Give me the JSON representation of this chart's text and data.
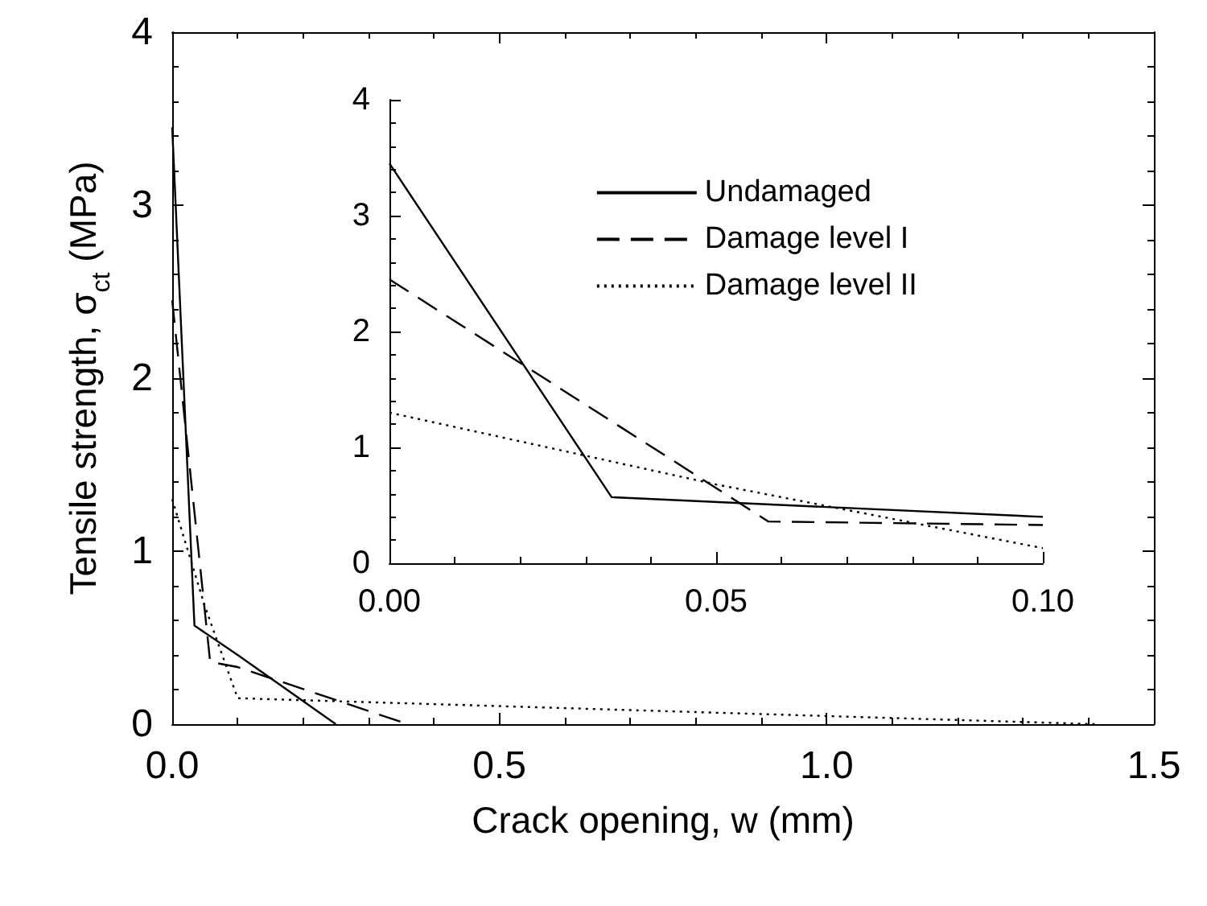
{
  "chart_data": [
    {
      "type": "line",
      "xlabel": "Crack opening, w (mm)",
      "ylabel": "Tensile strength, σ$_{ct}$ (MPa)",
      "xlim": [
        0,
        1.5
      ],
      "xticks": [
        {
          "value": 0,
          "label": "0.0"
        },
        {
          "value": 0.5,
          "label": "0.5"
        },
        {
          "value": 1,
          "label": "1.0"
        },
        {
          "value": 1.5,
          "label": "1.5"
        }
      ],
      "ylim": [
        0,
        4
      ],
      "yticks": [
        0,
        1,
        2,
        3,
        4
      ],
      "legend": false,
      "series": [
        {
          "color": "#000000",
          "line_style": "solid",
          "x": [
            0,
            0.034,
            0.1,
            0.25
          ],
          "values": [
            3.45,
            0.57,
            0.4,
            0
          ]
        },
        {
          "color": "#000000",
          "line_style": "dashed",
          "x": [
            0,
            0.058,
            0.1,
            0.36
          ],
          "values": [
            2.45,
            0.36,
            0.33,
            0
          ]
        },
        {
          "color": "#000000",
          "line_style": "dotted",
          "x": [
            0,
            0.05,
            0.1,
            1.41
          ],
          "values": [
            1.3,
            0.68,
            0.15,
            0
          ]
        }
      ]
    },
    {
      "type": "line",
      "xlim": [
        0,
        0.1
      ],
      "xticks": [
        {
          "value": 0,
          "label": "0.00"
        },
        {
          "value": 0.05,
          "label": "0.05"
        },
        {
          "value": 0.1,
          "label": "0.10"
        }
      ],
      "ylim": [
        0,
        4
      ],
      "yticks": [
        0,
        1,
        2,
        3,
        4
      ],
      "legend": "top right",
      "series": [
        {
          "name": "Undamaged",
          "color": "#000000",
          "line_style": "solid",
          "x": [
            0,
            0.034,
            0.1
          ],
          "values": [
            3.45,
            0.57,
            0.4
          ]
        },
        {
          "name": "Damage level I",
          "color": "#000000",
          "line_style": "dashed",
          "x": [
            0,
            0.058,
            0.1
          ],
          "values": [
            2.45,
            0.36,
            0.33
          ]
        },
        {
          "name": "Damage level II",
          "color": "#000000",
          "line_style": "dotted",
          "x": [
            0,
            0.05,
            0.1
          ],
          "values": [
            1.3,
            0.68,
            0.13
          ]
        }
      ]
    }
  ]
}
